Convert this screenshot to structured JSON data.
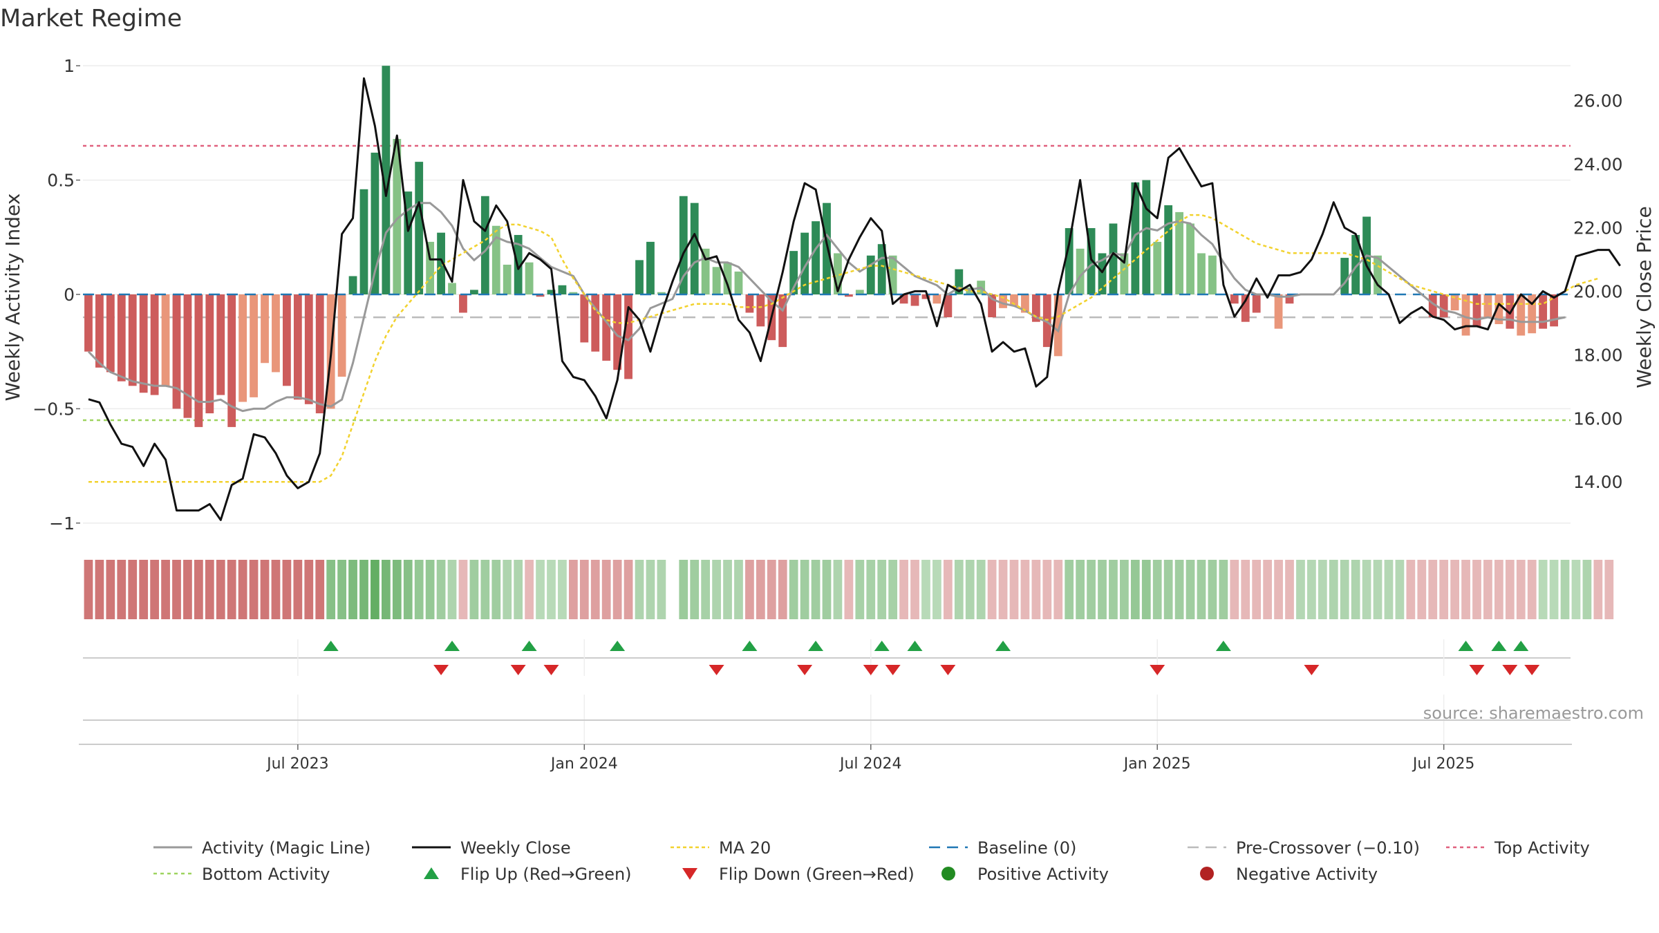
{
  "title": "Market Regime",
  "source": "source: sharemaestro.com",
  "colors": {
    "green_dark": "#2e8b57",
    "green_light": "#86c286",
    "red_dark": "#cd5c5c",
    "red_light": "#e9967a",
    "price": "#111111",
    "activity_line": "#999999",
    "ma20": "#f2d22e",
    "baseline": "#1f77b4",
    "pre_crossover": "#bbbbbb",
    "top_line": "#e0607e",
    "bottom_line": "#9ed35f",
    "flip_up": "#22a045",
    "flip_down": "#d62728",
    "positive": "#228b22",
    "negative": "#b22222"
  },
  "chart_data": {
    "type": "bar",
    "title": "Market Regime",
    "y_left": {
      "label": "Weekly Activity Index",
      "lim": [
        -1.07,
        1.07
      ],
      "ticks": [
        1,
        0.5,
        0,
        -0.5,
        -1
      ],
      "tick_labels": [
        "1",
        "0.5",
        "0",
        "−0.5",
        "−1"
      ]
    },
    "y_right": {
      "label": "Weekly Close Price",
      "lim": [
        12.2,
        27.6
      ],
      "ticks": [
        26,
        24,
        22,
        20,
        18,
        16,
        14
      ],
      "tick_labels": [
        "26.00",
        "24.00",
        "22.00",
        "20.00",
        "18.00",
        "16.00",
        "14.00"
      ]
    },
    "x_ticks": [
      {
        "week": 19,
        "label": "Jul 2023"
      },
      {
        "week": 45,
        "label": "Jan 2024"
      },
      {
        "week": 71,
        "label": "Jul 2024"
      },
      {
        "week": 97,
        "label": "Jan 2025"
      },
      {
        "week": 123,
        "label": "Jul 2025"
      }
    ],
    "weeks": 135,
    "reference_lines": {
      "baseline": 0,
      "pre_crossover": -0.1,
      "top_activity": 0.65,
      "bottom_activity": -0.55
    },
    "activity_bars": [
      -0.25,
      -0.32,
      -0.34,
      -0.38,
      -0.4,
      -0.43,
      -0.44,
      -0.4,
      -0.5,
      -0.54,
      -0.58,
      -0.52,
      -0.44,
      -0.58,
      -0.47,
      -0.45,
      -0.3,
      -0.34,
      -0.4,
      -0.46,
      -0.48,
      -0.52,
      -0.5,
      -0.36,
      0.08,
      0.46,
      0.62,
      1.0,
      0.68,
      0.45,
      0.58,
      0.23,
      0.27,
      0.05,
      -0.08,
      0.02,
      0.43,
      0.3,
      0.13,
      0.26,
      0.14,
      -0.01,
      0.02,
      0.04,
      0.01,
      -0.21,
      -0.25,
      -0.29,
      -0.33,
      -0.37,
      0.15,
      0.23,
      0.01,
      0.0,
      0.43,
      0.4,
      0.2,
      0.12,
      0.14,
      0.1,
      -0.08,
      -0.14,
      -0.2,
      -0.23,
      0.19,
      0.27,
      0.32,
      0.4,
      0.18,
      -0.01,
      0.02,
      0.17,
      0.22,
      0.17,
      -0.04,
      -0.05,
      -0.02,
      -0.04,
      -0.1,
      0.11,
      0.03,
      0.06,
      -0.1,
      -0.06,
      -0.05,
      -0.08,
      -0.12,
      -0.23,
      -0.27,
      0.29,
      0.2,
      0.29,
      0.18,
      0.31,
      0.18,
      0.49,
      0.5,
      0.23,
      0.39,
      0.36,
      0.31,
      0.18,
      0.17,
      0.0,
      -0.04,
      -0.12,
      -0.08,
      0.0,
      -0.15,
      -0.04,
      0.0,
      0.0,
      0.0,
      0.0,
      0.16,
      0.26,
      0.34,
      0.17,
      0.0,
      0.0,
      0.0,
      0.0,
      -0.1,
      -0.1,
      -0.07,
      -0.18,
      -0.14,
      -0.1,
      -0.13,
      -0.15,
      -0.18,
      -0.17,
      -0.15,
      -0.14,
      0.0
    ],
    "bar_shade": [
      "d",
      "d",
      "d",
      "d",
      "d",
      "d",
      "d",
      "l",
      "d",
      "d",
      "d",
      "d",
      "d",
      "d",
      "l",
      "l",
      "l",
      "l",
      "d",
      "d",
      "d",
      "d",
      "l",
      "l",
      "d",
      "d",
      "d",
      "d",
      "l",
      "d",
      "d",
      "l",
      "d",
      "l",
      "d",
      "d",
      "d",
      "l",
      "l",
      "d",
      "l",
      "d",
      "d",
      "d",
      "l",
      "d",
      "d",
      "d",
      "d",
      "d",
      "d",
      "d",
      "l",
      "l",
      "d",
      "d",
      "l",
      "l",
      "l",
      "l",
      "d",
      "d",
      "d",
      "d",
      "d",
      "d",
      "d",
      "d",
      "l",
      "d",
      "l",
      "d",
      "d",
      "l",
      "d",
      "d",
      "d",
      "l",
      "d",
      "d",
      "l",
      "l",
      "d",
      "l",
      "l",
      "l",
      "d",
      "d",
      "l",
      "d",
      "l",
      "d",
      "d",
      "d",
      "l",
      "d",
      "d",
      "l",
      "d",
      "l",
      "l",
      "l",
      "l",
      "l",
      "d",
      "d",
      "d",
      "d",
      "l",
      "d",
      "l",
      "l",
      "l",
      "l",
      "d",
      "d",
      "d",
      "l",
      "l",
      "l",
      "l",
      "l",
      "d",
      "d",
      "l",
      "l",
      "d",
      "l",
      "l",
      "d",
      "l",
      "l",
      "d",
      "d",
      "l"
    ],
    "activity_line": [
      -0.25,
      -0.3,
      -0.34,
      -0.36,
      -0.38,
      -0.39,
      -0.4,
      -0.4,
      -0.41,
      -0.44,
      -0.47,
      -0.47,
      -0.46,
      -0.49,
      -0.51,
      -0.5,
      -0.5,
      -0.47,
      -0.45,
      -0.45,
      -0.46,
      -0.48,
      -0.49,
      -0.46,
      -0.3,
      -0.1,
      0.1,
      0.27,
      0.33,
      0.37,
      0.4,
      0.4,
      0.36,
      0.3,
      0.2,
      0.15,
      0.19,
      0.25,
      0.23,
      0.22,
      0.2,
      0.16,
      0.12,
      0.1,
      0.08,
      0.0,
      -0.06,
      -0.12,
      -0.18,
      -0.2,
      -0.15,
      -0.06,
      -0.04,
      -0.02,
      0.08,
      0.14,
      0.16,
      0.14,
      0.14,
      0.12,
      0.07,
      0.02,
      -0.03,
      -0.07,
      0.03,
      0.12,
      0.2,
      0.26,
      0.2,
      0.14,
      0.1,
      0.13,
      0.16,
      0.16,
      0.12,
      0.08,
      0.06,
      0.04,
      0.0,
      0.03,
      0.02,
      0.03,
      -0.02,
      -0.04,
      -0.05,
      -0.07,
      -0.1,
      -0.12,
      -0.16,
      0.0,
      0.08,
      0.13,
      0.15,
      0.18,
      0.17,
      0.26,
      0.29,
      0.28,
      0.31,
      0.32,
      0.31,
      0.26,
      0.22,
      0.14,
      0.07,
      0.02,
      0.0,
      0.0,
      -0.01,
      -0.01,
      0.0,
      0.0,
      0.0,
      0.0,
      0.05,
      0.12,
      0.17,
      0.16,
      0.12,
      0.08,
      0.04,
      0.0,
      -0.04,
      -0.07,
      -0.08,
      -0.1,
      -0.11,
      -0.1,
      -0.11,
      -0.11,
      -0.12,
      -0.12,
      -0.12,
      -0.11,
      -0.1
    ],
    "weekly_close": [
      16.6,
      16.5,
      15.8,
      15.2,
      15.1,
      14.5,
      15.2,
      14.7,
      13.1,
      13.1,
      13.1,
      13.3,
      12.8,
      13.9,
      14.1,
      15.5,
      15.4,
      14.9,
      14.2,
      13.8,
      14.0,
      14.9,
      18.0,
      21.8,
      22.3,
      26.7,
      25.2,
      23.0,
      24.9,
      21.9,
      22.8,
      21.0,
      21.0,
      20.3,
      23.5,
      22.2,
      21.9,
      22.7,
      22.2,
      20.7,
      21.2,
      21.0,
      20.7,
      17.8,
      17.3,
      17.2,
      16.7,
      16.0,
      17.2,
      19.5,
      19.1,
      18.1,
      19.3,
      20.3,
      21.2,
      21.8,
      21.0,
      21.1,
      20.2,
      19.1,
      18.7,
      17.8,
      19.2,
      20.6,
      22.2,
      23.4,
      23.2,
      21.5,
      20.0,
      21.0,
      21.7,
      22.3,
      21.9,
      19.6,
      19.9,
      20.0,
      20.0,
      18.9,
      20.2,
      20.0,
      20.2,
      19.6,
      18.1,
      18.4,
      18.1,
      18.2,
      17.0,
      17.3,
      20.0,
      21.5,
      23.5,
      21.0,
      20.6,
      21.2,
      20.9,
      23.4,
      22.6,
      22.3,
      24.2,
      24.5,
      23.9,
      23.3,
      23.4,
      20.2,
      19.2,
      19.7,
      20.4,
      19.8,
      20.5,
      20.5,
      20.6,
      21.0,
      21.8,
      22.8,
      22.0,
      21.8,
      20.8,
      20.2,
      19.9,
      19.0,
      19.3,
      19.5,
      19.2,
      19.1,
      18.8,
      18.9,
      18.9,
      18.8,
      19.6,
      19.3,
      19.9,
      19.6,
      20.0,
      19.8,
      20.0,
      21.1,
      21.2,
      21.3,
      21.3,
      20.8
    ],
    "ma20": [
      14.0,
      14.0,
      14.0,
      14.0,
      14.0,
      14.0,
      14.0,
      14.0,
      14.0,
      14.0,
      14.0,
      14.0,
      14.0,
      14.0,
      14.0,
      14.0,
      14.0,
      14.0,
      14.0,
      14.0,
      14.0,
      14.0,
      14.2,
      14.8,
      15.8,
      16.8,
      17.8,
      18.6,
      19.2,
      19.6,
      20.0,
      20.4,
      20.8,
      21.0,
      21.2,
      21.4,
      21.6,
      21.9,
      22.1,
      22.1,
      22.0,
      21.9,
      21.7,
      21.0,
      20.4,
      19.9,
      19.4,
      19.1,
      19.0,
      19.0,
      19.1,
      19.2,
      19.3,
      19.4,
      19.5,
      19.6,
      19.6,
      19.6,
      19.6,
      19.5,
      19.5,
      19.5,
      19.6,
      19.8,
      20.0,
      20.2,
      20.3,
      20.4,
      20.5,
      20.6,
      20.7,
      20.8,
      20.8,
      20.7,
      20.6,
      20.5,
      20.4,
      20.3,
      20.2,
      20.1,
      20.0,
      20.0,
      19.9,
      19.8,
      19.6,
      19.4,
      19.2,
      19.1,
      19.2,
      19.4,
      19.6,
      19.8,
      20.1,
      20.4,
      20.7,
      21.0,
      21.3,
      21.6,
      21.9,
      22.2,
      22.4,
      22.4,
      22.3,
      22.1,
      21.9,
      21.7,
      21.5,
      21.4,
      21.3,
      21.2,
      21.2,
      21.2,
      21.2,
      21.2,
      21.2,
      21.1,
      21.0,
      20.8,
      20.6,
      20.4,
      20.2,
      20.1,
      20.0,
      19.9,
      19.8,
      19.7,
      19.6,
      19.6,
      19.6,
      19.6,
      19.6,
      19.6,
      19.6,
      19.8,
      20.0,
      20.2,
      20.3,
      20.4
    ],
    "regime_strip": [
      -0.85,
      -0.85,
      -0.85,
      -0.85,
      -0.85,
      -0.85,
      -0.85,
      -0.85,
      -0.85,
      -0.85,
      -0.85,
      -0.85,
      -0.85,
      -0.85,
      -0.85,
      -0.85,
      -0.85,
      -0.85,
      -0.85,
      -0.85,
      -0.85,
      -0.85,
      0.7,
      0.7,
      0.8,
      0.85,
      1.0,
      0.85,
      0.8,
      0.7,
      0.6,
      0.6,
      0.5,
      0.4,
      -0.3,
      0.5,
      0.5,
      0.5,
      0.4,
      0.4,
      -0.3,
      0.3,
      0.3,
      0.3,
      -0.5,
      -0.5,
      -0.5,
      -0.5,
      -0.5,
      -0.5,
      0.4,
      0.4,
      0.4,
      null,
      0.55,
      0.5,
      0.45,
      0.4,
      0.4,
      0.4,
      -0.5,
      -0.5,
      -0.5,
      -0.5,
      0.5,
      0.5,
      0.5,
      0.5,
      0.4,
      -0.3,
      0.45,
      0.45,
      0.45,
      0.45,
      -0.3,
      -0.3,
      0.3,
      0.3,
      -0.3,
      0.4,
      0.4,
      0.4,
      -0.3,
      -0.3,
      -0.3,
      -0.3,
      -0.3,
      -0.3,
      -0.3,
      0.5,
      0.5,
      0.5,
      0.5,
      0.5,
      0.5,
      0.6,
      0.6,
      0.5,
      0.5,
      0.5,
      0.5,
      0.5,
      0.5,
      0.5,
      -0.3,
      -0.3,
      -0.3,
      -0.3,
      -0.3,
      -0.3,
      0.35,
      0.35,
      0.35,
      0.4,
      0.4,
      0.4,
      0.35,
      0.35,
      0.35,
      0.35,
      -0.3,
      -0.3,
      -0.3,
      -0.3,
      -0.3,
      -0.3,
      -0.3,
      -0.3,
      -0.3,
      -0.3,
      -0.3,
      -0.3,
      0.3,
      0.3,
      0.4,
      0.3,
      0.4,
      -0.3,
      -0.3
    ],
    "flip_up_weeks": [
      22,
      33,
      40,
      48,
      60,
      66,
      72,
      75,
      83,
      103,
      125,
      128,
      130
    ],
    "flip_down_weeks": [
      32,
      39,
      42,
      57,
      65,
      71,
      73,
      78,
      97,
      111,
      126,
      129,
      131
    ],
    "legend": [
      {
        "label": "Activity (Magic Line)",
        "key": "activity_line"
      },
      {
        "label": "Weekly Close",
        "key": "weekly_close"
      },
      {
        "label": "MA 20",
        "key": "ma20"
      },
      {
        "label": "Baseline (0)",
        "key": "baseline"
      },
      {
        "label": "Pre-Crossover (−0.10)",
        "key": "pre_crossover"
      },
      {
        "label": "Top Activity",
        "key": "top_activity"
      },
      {
        "label": "Bottom Activity",
        "key": "bottom_activity"
      },
      {
        "label": "Flip Up (Red→Green)",
        "key": "flip_up"
      },
      {
        "label": "Flip Down (Green→Red)",
        "key": "flip_down"
      },
      {
        "label": "Positive Activity",
        "key": "positive"
      },
      {
        "label": "Negative Activity",
        "key": "negative"
      }
    ]
  }
}
